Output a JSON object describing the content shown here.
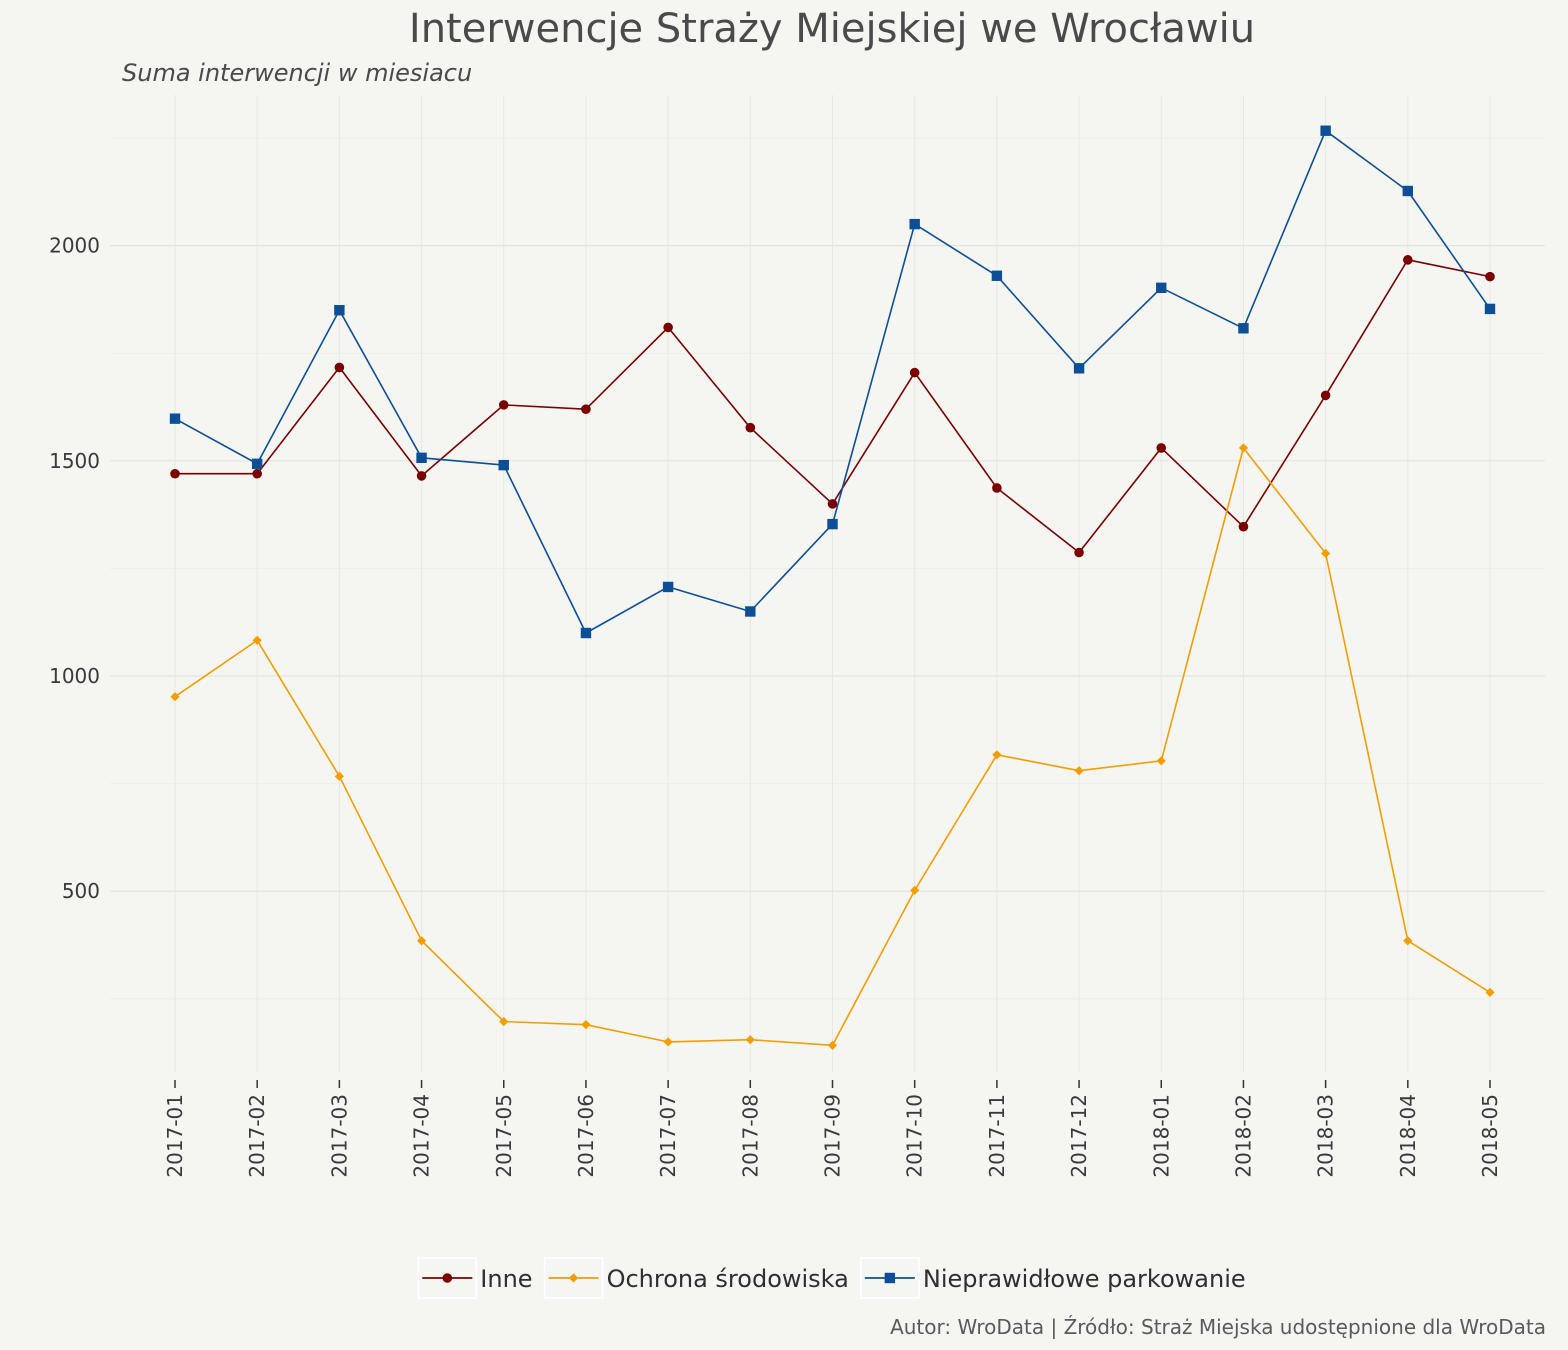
{
  "chart_data": {
    "type": "line",
    "title": "Interwencje Straży Miejskiej we Wrocławiu",
    "subtitle": "Suma interwencji w miesiacu",
    "caption": "Autor: WroData | Źródło: Straż Miejska udostępnione dla WroData",
    "xlabel": "",
    "ylabel": "",
    "x": [
      "2017-01",
      "2017-02",
      "2017-03",
      "2017-04",
      "2017-05",
      "2017-06",
      "2017-07",
      "2017-08",
      "2017-09",
      "2017-10",
      "2017-11",
      "2017-12",
      "2018-01",
      "2018-02",
      "2018-03",
      "2018-04",
      "2018-05"
    ],
    "ylim": [
      80,
      2350
    ],
    "yticks": [
      500,
      1000,
      1500,
      2000
    ],
    "grid": true,
    "legend_position": "bottom",
    "series": [
      {
        "name": "Inne",
        "color": "#7a0000",
        "marker": "circle",
        "values": [
          1470,
          1470,
          1717,
          1465,
          1630,
          1620,
          1810,
          1577,
          1400,
          1705,
          1437,
          1287,
          1530,
          1347,
          1652,
          1967,
          1928
        ]
      },
      {
        "name": "Ochrona środowiska",
        "color": "#f59d00",
        "marker": "diamond",
        "values": [
          952,
          1083,
          767,
          385,
          197,
          190,
          150,
          155,
          142,
          502,
          817,
          780,
          803,
          1530,
          1285,
          385,
          265
        ]
      },
      {
        "name": "Nieprawidłowe parkowanie",
        "color": "#0c4f96",
        "marker": "square",
        "values": [
          1598,
          1493,
          1850,
          1507,
          1490,
          1100,
          1207,
          1150,
          1353,
          2050,
          1930,
          1715,
          1902,
          1808,
          2267,
          2127,
          1853
        ]
      }
    ]
  }
}
